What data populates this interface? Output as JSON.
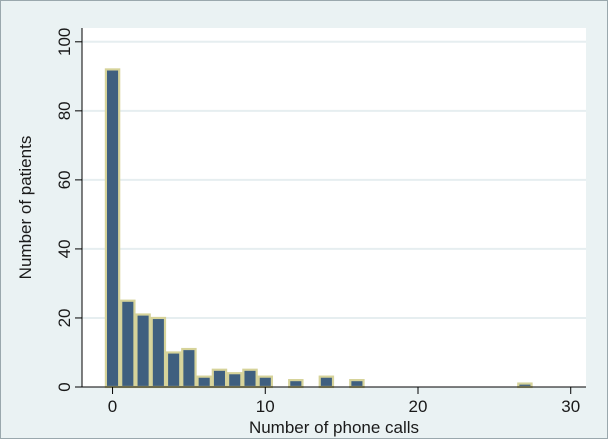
{
  "chart_data": {
    "type": "bar",
    "chart_style": "histogram",
    "xlabel": "Number of phone calls",
    "ylabel": "Number of patients",
    "xlim": [
      -2,
      31
    ],
    "ylim": [
      0,
      104
    ],
    "x_ticks": [
      0,
      10,
      20,
      30
    ],
    "y_ticks": [
      0,
      20,
      40,
      60,
      80,
      100
    ],
    "grid": "horizontal",
    "bin_width": 1,
    "bins": [
      {
        "x": 0,
        "count": 92
      },
      {
        "x": 1,
        "count": 25
      },
      {
        "x": 2,
        "count": 21
      },
      {
        "x": 3,
        "count": 20
      },
      {
        "x": 4,
        "count": 10
      },
      {
        "x": 5,
        "count": 11
      },
      {
        "x": 6,
        "count": 3
      },
      {
        "x": 7,
        "count": 5
      },
      {
        "x": 8,
        "count": 4
      },
      {
        "x": 9,
        "count": 5
      },
      {
        "x": 10,
        "count": 3
      },
      {
        "x": 12,
        "count": 2
      },
      {
        "x": 14,
        "count": 3
      },
      {
        "x": 16,
        "count": 2
      },
      {
        "x": 27,
        "count": 1
      }
    ],
    "colors": {
      "bar_fill": "#3f5f7f",
      "bar_edge": "#d6d39a",
      "outer_background": "#eaf2f3",
      "plot_background": "#ffffff",
      "grid": "#e6eef0",
      "axis": "#000000"
    }
  }
}
